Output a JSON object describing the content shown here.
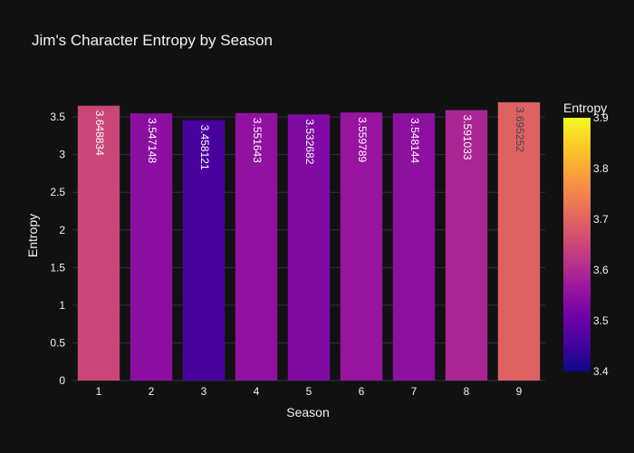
{
  "chart_data": {
    "type": "bar",
    "title": "Jim's Character Entropy by Season",
    "xlabel": "Season",
    "ylabel": "Entropy",
    "categories": [
      "1",
      "2",
      "3",
      "4",
      "5",
      "6",
      "7",
      "8",
      "9"
    ],
    "values": [
      3.648834,
      3.547148,
      3.458121,
      3.551643,
      3.532682,
      3.559789,
      3.548144,
      3.591033,
      3.695252
    ],
    "value_labels": [
      "3.648834",
      "3.547148",
      "3.458121",
      "3.551643",
      "3.532682",
      "3.559789",
      "3.548144",
      "3.591033",
      "3.695252"
    ],
    "ylim": [
      0,
      3.85
    ],
    "yticks": [
      0,
      0.5,
      1,
      1.5,
      2,
      2.5,
      3,
      3.5
    ],
    "ytick_labels": [
      "0",
      "0.5",
      "1",
      "1.5",
      "2",
      "2.5",
      "3",
      "3.5"
    ],
    "grid": true,
    "colorbar": {
      "title": "Entropy",
      "min": 3.4,
      "max": 3.9,
      "ticks": [
        3.4,
        3.5,
        3.6,
        3.7,
        3.8,
        3.9
      ],
      "tick_labels": [
        "3.4",
        "3.5",
        "3.6",
        "3.7",
        "3.8",
        "3.9"
      ],
      "colorscale": "plasma"
    },
    "colors": {
      "background": "#111111",
      "grid": "#283442",
      "text": "#f2f2f2"
    }
  }
}
